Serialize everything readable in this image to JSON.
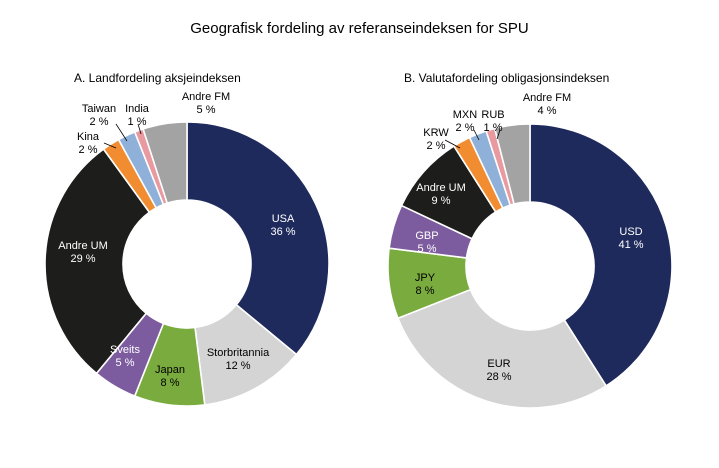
{
  "title": "Geografisk fordeling av referanseindeksen for SPU",
  "chart_data": [
    {
      "type": "pie",
      "donut": true,
      "title": "A. Landfordeling aksjeindeksen",
      "categories": [
        "USA",
        "Storbritannia",
        "Japan",
        "Sveits",
        "Andre UM",
        "Kina",
        "Taiwan",
        "India",
        "Andre FM"
      ],
      "values": [
        36,
        12,
        8,
        5,
        29,
        2,
        2,
        1,
        5
      ],
      "value_labels": [
        "36 %",
        "12 %",
        "8 %",
        "5 %",
        "29 %",
        "2 %",
        "2 %",
        "1 %",
        "5 %"
      ],
      "colors": [
        "#1f2a5c",
        "#d4d4d4",
        "#7aab3e",
        "#7c5c9e",
        "#1d1d1b",
        "#f28c30",
        "#8fb0d8",
        "#e89aa0",
        "#a3a3a3"
      ]
    },
    {
      "type": "pie",
      "donut": true,
      "title": "B. Valutafordeling obligasjonsindeksen",
      "categories": [
        "USD",
        "EUR",
        "JPY",
        "GBP",
        "Andre UM",
        "KRW",
        "MXN",
        "RUB",
        "Andre FM"
      ],
      "values": [
        41,
        28,
        8,
        5,
        9,
        2,
        2,
        1,
        4
      ],
      "value_labels": [
        "41 %",
        "28 %",
        "8 %",
        "5 %",
        "9 %",
        "2 %",
        "2 %",
        "1 %",
        "4 %"
      ],
      "colors": [
        "#1f2a5c",
        "#d4d4d4",
        "#7aab3e",
        "#7c5c9e",
        "#1d1d1b",
        "#f28c30",
        "#8fb0d8",
        "#e89aa0",
        "#a3a3a3"
      ]
    }
  ]
}
